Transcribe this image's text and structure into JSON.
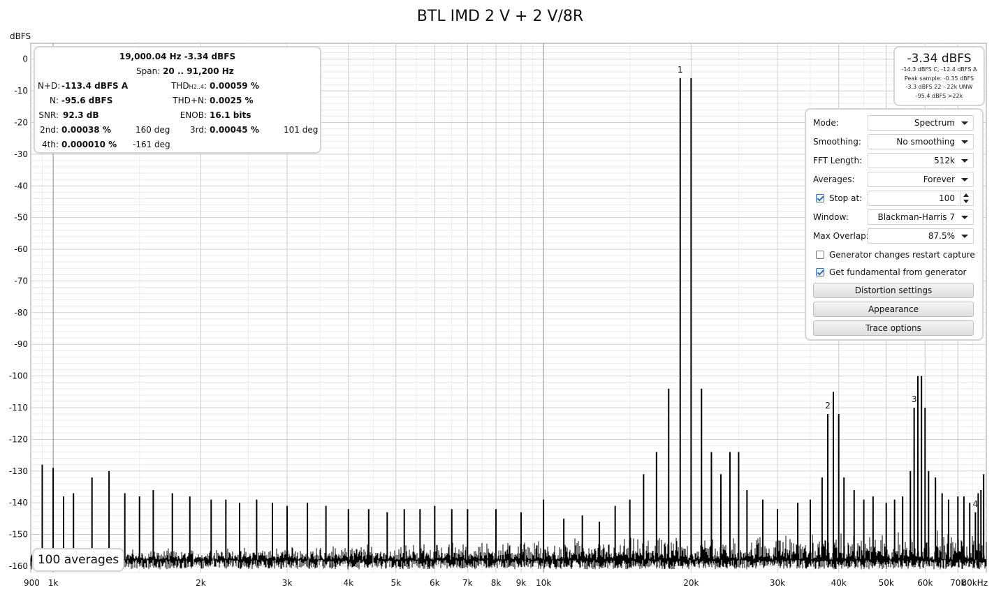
{
  "chart_data": {
    "type": "line",
    "title": "BTL IMD 2 V + 2 V/8R",
    "ylabel": "dBFS",
    "xlabel": "",
    "x_scale": "log",
    "xlim": [
      900,
      80000
    ],
    "ylim": [
      -162,
      5
    ],
    "grid": true,
    "y_ticks": [
      0,
      -10,
      -20,
      -30,
      -40,
      -50,
      -60,
      -70,
      -80,
      -90,
      -100,
      -110,
      -120,
      -130,
      -140,
      -150,
      -160
    ],
    "y_tick_labels": [
      "0",
      "-10",
      "-20",
      "-30",
      "-40",
      "-50",
      "-60",
      "-70",
      "-80",
      "-90",
      "-100",
      "-110",
      "-120",
      "-130",
      "-140",
      "-150",
      "-160"
    ],
    "x_ticks": [
      900,
      1000,
      2000,
      3000,
      4000,
      5000,
      6000,
      7000,
      8000,
      9000,
      10000,
      20000,
      30000,
      40000,
      50000,
      60000,
      70000,
      80000
    ],
    "x_tick_labels": [
      "900",
      "1k",
      "2k",
      "3k",
      "4k",
      "5k",
      "6k",
      "7k",
      "8k",
      "9k",
      "10k",
      "20k",
      "30k",
      "40k",
      "50k",
      "60k",
      "70k",
      "80kHz"
    ],
    "noise_floor_dbfs": -158,
    "series": [
      {
        "color": "#000000",
        "peaks": [
          {
            "x": 19000,
            "y": -6
          },
          {
            "x": 20000,
            "y": -6
          },
          {
            "x": 18000,
            "y": -104
          },
          {
            "x": 21000,
            "y": -104
          },
          {
            "x": 17000,
            "y": -124
          },
          {
            "x": 22000,
            "y": -124
          },
          {
            "x": 16000,
            "y": -131
          },
          {
            "x": 23000,
            "y": -131
          },
          {
            "x": 24000,
            "y": -124
          },
          {
            "x": 25000,
            "y": -124
          },
          {
            "x": 15000,
            "y": -139
          },
          {
            "x": 26000,
            "y": -136
          },
          {
            "x": 38000,
            "y": -112
          },
          {
            "x": 39000,
            "y": -105
          },
          {
            "x": 40000,
            "y": -112
          },
          {
            "x": 37000,
            "y": -132
          },
          {
            "x": 41000,
            "y": -132
          },
          {
            "x": 57000,
            "y": -110
          },
          {
            "x": 58000,
            "y": -100
          },
          {
            "x": 59000,
            "y": -100
          },
          {
            "x": 60000,
            "y": -110
          },
          {
            "x": 56000,
            "y": -130
          },
          {
            "x": 61000,
            "y": -130
          },
          {
            "x": 76000,
            "y": -143
          },
          {
            "x": 77000,
            "y": -137
          },
          {
            "x": 78000,
            "y": -136
          },
          {
            "x": 79000,
            "y": -131
          },
          {
            "x": 950,
            "y": -128
          },
          {
            "x": 1000,
            "y": -129
          },
          {
            "x": 1050,
            "y": -138
          },
          {
            "x": 1100,
            "y": -137
          },
          {
            "x": 1200,
            "y": -132
          },
          {
            "x": 1300,
            "y": -130
          },
          {
            "x": 1400,
            "y": -137
          },
          {
            "x": 1500,
            "y": -138
          },
          {
            "x": 1600,
            "y": -136
          },
          {
            "x": 1750,
            "y": -137
          },
          {
            "x": 1900,
            "y": -138
          },
          {
            "x": 2100,
            "y": -139
          },
          {
            "x": 2250,
            "y": -139
          },
          {
            "x": 2400,
            "y": -140
          },
          {
            "x": 2600,
            "y": -139
          },
          {
            "x": 2800,
            "y": -140
          },
          {
            "x": 3000,
            "y": -141
          },
          {
            "x": 3300,
            "y": -140
          },
          {
            "x": 3600,
            "y": -141
          },
          {
            "x": 4000,
            "y": -142
          },
          {
            "x": 4400,
            "y": -142
          },
          {
            "x": 4800,
            "y": -143
          },
          {
            "x": 5200,
            "y": -142
          },
          {
            "x": 5600,
            "y": -142
          },
          {
            "x": 6000,
            "y": -141
          },
          {
            "x": 6500,
            "y": -142
          },
          {
            "x": 7000,
            "y": -142
          },
          {
            "x": 8000,
            "y": -142
          },
          {
            "x": 9000,
            "y": -143
          },
          {
            "x": 10000,
            "y": -139
          },
          {
            "x": 11000,
            "y": -145
          },
          {
            "x": 12000,
            "y": -144
          },
          {
            "x": 13000,
            "y": -146
          },
          {
            "x": 14000,
            "y": -141
          },
          {
            "x": 28000,
            "y": -139
          },
          {
            "x": 30000,
            "y": -142
          },
          {
            "x": 33000,
            "y": -140
          },
          {
            "x": 35000,
            "y": -139
          },
          {
            "x": 43000,
            "y": -136
          },
          {
            "x": 45000,
            "y": -139
          },
          {
            "x": 47000,
            "y": -138
          },
          {
            "x": 50000,
            "y": -140
          },
          {
            "x": 52000,
            "y": -139
          },
          {
            "x": 54000,
            "y": -138
          },
          {
            "x": 63000,
            "y": -132
          },
          {
            "x": 65000,
            "y": -137
          },
          {
            "x": 67000,
            "y": -139
          },
          {
            "x": 70000,
            "y": -138
          },
          {
            "x": 72000,
            "y": -138
          },
          {
            "x": 74000,
            "y": -140
          }
        ]
      }
    ],
    "markers": [
      {
        "label": "1",
        "x": 19000,
        "y": -6
      },
      {
        "label": "2",
        "x": 38000,
        "y": -112
      },
      {
        "label": "3",
        "x": 57000,
        "y": -110
      },
      {
        "label": "4",
        "x": 76000,
        "y": -143
      }
    ]
  },
  "readout": {
    "header": "19,000.04 Hz  -3.34 dBFS",
    "span_label": "Span:",
    "span_value": "20 .. 91,200 Hz",
    "nd_label": "N+D:",
    "nd_value": "-113.4 dBFS A",
    "thd_label_main": "THD",
    "thd_label_sub": "H2..4",
    "thd_label_colon": ":",
    "thd_value": "0.00059 %",
    "n_label": "N:",
    "n_value": "-95.6 dBFS",
    "thdn_label": "THD+N:",
    "thdn_value": "0.0025 %",
    "snr_label": "SNR:",
    "snr_value": "92.3 dB",
    "enob_label": "ENOB:",
    "enob_value": "16.1 bits",
    "h2_label": "2nd:",
    "h2_value": "0.00038 %",
    "h2_phase": "160 deg",
    "h3_label": "3rd:",
    "h3_value": "0.00045 %",
    "h3_phase": "101 deg",
    "h4_label": "4th:",
    "h4_value": "0.000010 %",
    "h4_phase": "-161 deg"
  },
  "level": {
    "main": "-3.34 dBFS",
    "line1": "-14.3 dBFS C, -12.4 dBFS A",
    "line2": "Peak sample: -0.35 dBFS",
    "line3": "-3.3 dBFS 22 - 22k UNW",
    "line4": "-95.4 dBFS >22k"
  },
  "controls": {
    "mode_label": "Mode:",
    "mode_value": "Spectrum",
    "smoothing_label": "Smoothing:",
    "smoothing_value": "No smoothing",
    "fft_label": "FFT Length:",
    "fft_value": "512k",
    "averages_label": "Averages:",
    "averages_value": "Forever",
    "stop_label": "Stop at:",
    "stop_value": "100",
    "stop_checked": true,
    "window_label": "Window:",
    "window_value": "Blackman-Harris 7",
    "overlap_label": "Max Overlap:",
    "overlap_value": "87.5%",
    "restart_label": "Generator changes restart capture",
    "restart_checked": false,
    "fundamental_label": "Get fundamental from generator",
    "fundamental_checked": true,
    "distortion_button": "Distortion settings",
    "appearance_button": "Appearance",
    "trace_button": "Trace options"
  },
  "averages_badge": "100 averages"
}
